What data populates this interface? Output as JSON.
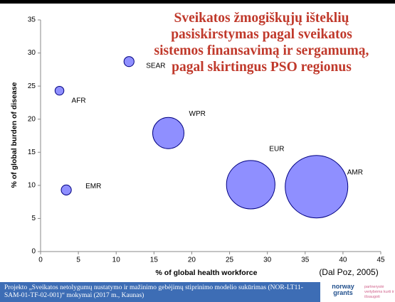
{
  "chart_data": {
    "type": "bubble",
    "title": "Sveikatos žmogiškųjų išteklių pasiskirstymas pagal sveikatos sistemos finansavimą ir sergamumą, pagal skirtingus PSO regionus",
    "x_label": "% of global health workforce",
    "y_label": "% of global burden of disease",
    "source": "(Dal Poz, 2005)",
    "categories": [
      "AFR",
      "SEAR",
      "WPR",
      "EMR",
      "EUR",
      "AMR"
    ],
    "x": [
      2.5,
      11.7,
      16.9,
      3.4,
      27.8,
      36.5
    ],
    "values": [
      24.3,
      28.7,
      17.9,
      9.3,
      10.1,
      9.8
    ],
    "sizes": [
      1,
      1.3,
      12.5,
      1.3,
      30,
      50
    ],
    "color": "#8f8fff",
    "edge_color": "#000080",
    "xlim": [
      0,
      45
    ],
    "xticks": [
      0,
      5,
      10,
      15,
      20,
      25,
      30,
      35,
      40,
      45
    ],
    "ylim": [
      0,
      35
    ],
    "yticks": [
      0,
      5,
      10,
      15,
      20,
      25,
      30,
      35
    ],
    "grid": false
  },
  "footer": {
    "text": "Projekto „Sveikatos netolygumų nustatymo ir mažinimo gebėjimų stiprinimo modelio sukūrimas (NOR-LT11-SAM-01-TF-02-001)“ mokymai (2017 m., Kaunas)",
    "logo": "norway grants",
    "tagline": "partnerystė vertybėms kurti ir išsaugoti"
  }
}
